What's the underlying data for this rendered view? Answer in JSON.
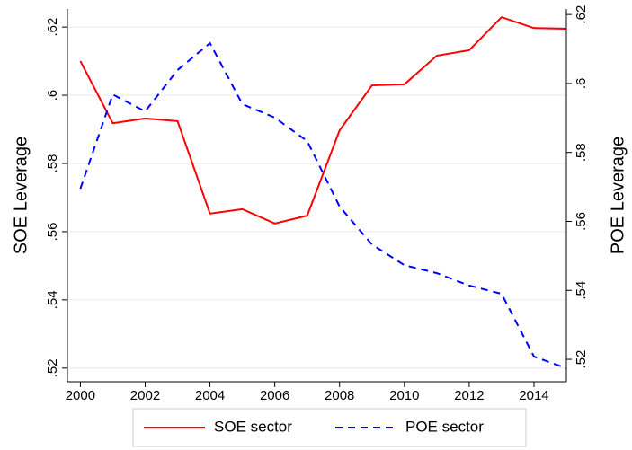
{
  "chart_data": {
    "type": "line",
    "x": [
      2000,
      2001,
      2002,
      2003,
      2004,
      2005,
      2006,
      2007,
      2008,
      2009,
      2010,
      2011,
      2012,
      2013,
      2014,
      2015
    ],
    "xlim": [
      1999.6,
      2015
    ],
    "xticks": [
      2000,
      2002,
      2004,
      2006,
      2008,
      2010,
      2012,
      2014
    ],
    "ylabel": "SOE Leverage",
    "y2label": "POE Leverage",
    "ylim": [
      0.516,
      0.6253
    ],
    "yticks": [
      {
        "value": 0.52,
        "label": ".52"
      },
      {
        "value": 0.54,
        "label": ".54"
      },
      {
        "value": 0.56,
        "label": ".56"
      },
      {
        "value": 0.58,
        "label": ".58"
      },
      {
        "value": 0.6,
        "label": ".6"
      },
      {
        "value": 0.62,
        "label": ".62"
      }
    ],
    "y2lim": [
      0.5135,
      0.6216
    ],
    "y2ticks": [
      {
        "value": 0.52,
        "label": ".52"
      },
      {
        "value": 0.54,
        "label": ".54"
      },
      {
        "value": 0.56,
        "label": ".56"
      },
      {
        "value": 0.58,
        "label": ".58"
      },
      {
        "value": 0.6,
        "label": ".6"
      },
      {
        "value": 0.62,
        "label": ".62"
      }
    ],
    "grid": true,
    "series": [
      {
        "name": "SOE sector",
        "color": "#ff0000",
        "dashed": false,
        "values": [
          0.61,
          0.5918,
          0.5932,
          0.5924,
          0.5653,
          0.5666,
          0.5624,
          0.5647,
          0.5897,
          0.6029,
          0.6032,
          0.6116,
          0.6132,
          0.6229,
          0.6197,
          0.6195
        ]
      },
      {
        "name": "POE sector",
        "color": "#0000ff",
        "dashed": true,
        "axis": "y2",
        "values": [
          0.5695,
          0.5968,
          0.5919,
          0.6039,
          0.6117,
          0.594,
          0.5901,
          0.5833,
          0.5643,
          0.5533,
          0.5473,
          0.545,
          0.5414,
          0.539,
          0.5208,
          0.5174
        ]
      }
    ]
  }
}
